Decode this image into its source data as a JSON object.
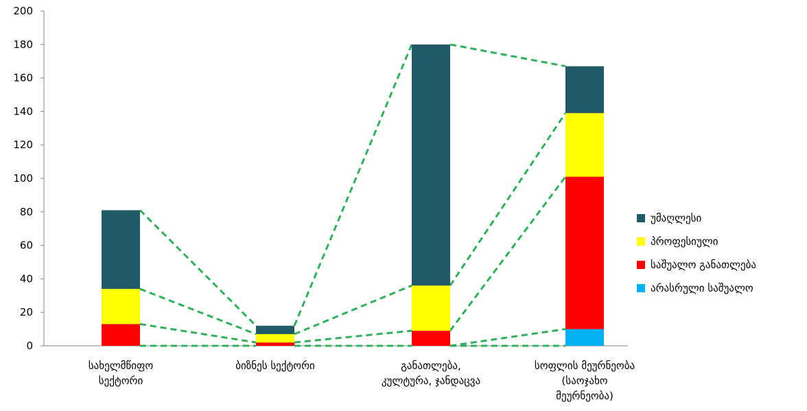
{
  "chart_data": {
    "type": "bar",
    "stacked": true,
    "title": "",
    "xlabel": "",
    "ylabel": "",
    "ylim": [
      0,
      200
    ],
    "yticks": [
      0,
      20,
      40,
      60,
      80,
      100,
      120,
      140,
      160,
      180,
      200
    ],
    "grid": false,
    "legend_position": "right",
    "categories": [
      [
        "სახელმწიფო",
        "სექტორი"
      ],
      [
        "ბიზნეს სექტორი"
      ],
      [
        "განათლება,",
        "კულტურა, ჯანდაცვა"
      ],
      [
        "სოფლის მეურნეობა",
        "(საოჯახო",
        "მეურნეობა)"
      ]
    ],
    "series": [
      {
        "name": "არასრული საშუალო",
        "color": "#00b0f0",
        "values": [
          0,
          0,
          0,
          10
        ]
      },
      {
        "name": "საშუალო განათლება",
        "color": "#ff0000",
        "values": [
          13,
          2,
          9,
          91
        ]
      },
      {
        "name": "პროფესიული",
        "color": "#ffff00",
        "values": [
          21,
          5,
          27,
          38
        ]
      },
      {
        "name": "უმაღლესი",
        "color": "#215967",
        "values": [
          47,
          5,
          144,
          28
        ]
      }
    ],
    "legend_order": [
      3,
      2,
      1,
      0
    ],
    "connector_style": {
      "color": "#2eb15a",
      "dashed": true
    }
  }
}
